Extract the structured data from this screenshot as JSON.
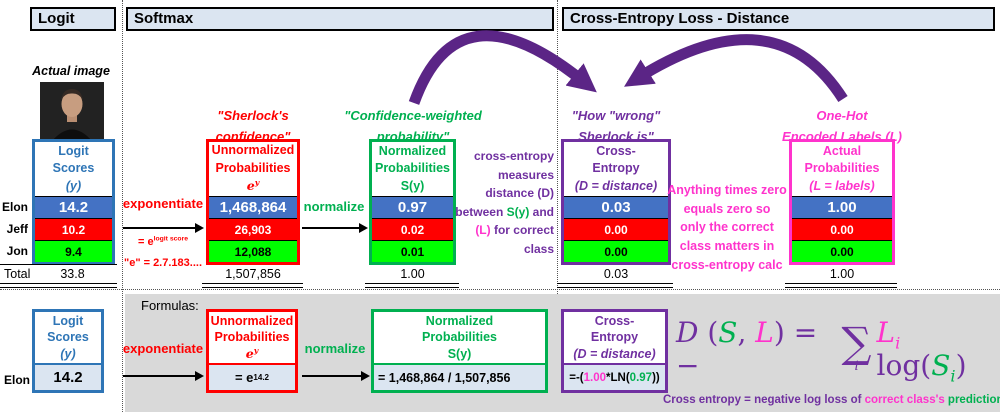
{
  "headers": {
    "logit": "Logit",
    "softmax": "Softmax",
    "cross_entropy": "Cross-Entropy Loss - Distance"
  },
  "photo_label": "Actual image",
  "people": [
    "Elon",
    "Jeff",
    "Jon"
  ],
  "total_label": "Total",
  "top": {
    "logit": {
      "title": [
        "Logit",
        "Scores"
      ],
      "title3": [
        {
          "t": "(y)",
          "i": true
        }
      ],
      "values": [
        "14.2",
        "10.2",
        "9.4"
      ],
      "total": "33.8"
    },
    "exponentiate": {
      "label": "exponentiate",
      "formula": [
        {
          "t": "= e"
        },
        {
          "t": "logit score",
          "sup": true
        }
      ],
      "e_note": "\"e\" = 2.7.183...."
    },
    "unnorm": {
      "label_above": [
        "\"Sherlock's",
        "confidence\""
      ],
      "title": [
        "Unnormalized",
        "Probabilities"
      ],
      "title3": [
        {
          "t": "e",
          "i": true,
          "serif": true
        },
        {
          "t": "y",
          "sup": true,
          "i": true,
          "serif": true
        }
      ],
      "values": [
        "1,468,864",
        "26,903",
        "12,088"
      ],
      "total": "1,507,856"
    },
    "normalize_label": "normalize",
    "norm": {
      "label_above": [
        "\"Confidence-weighted",
        "probability\""
      ],
      "title": [
        "Normalized",
        "Probabilities"
      ],
      "title3": [
        {
          "t": "S(y)"
        }
      ],
      "values": [
        "0.97",
        "0.02",
        "0.01"
      ],
      "total": "1.00"
    },
    "bridge_lines": [
      [
        {
          "t": "cross-entropy"
        }
      ],
      [
        {
          "t": "measures"
        }
      ],
      [
        {
          "t": "distance (D)"
        }
      ],
      [
        {
          "t": "between "
        },
        {
          "t": "S(y)",
          "c": "#00b050"
        },
        {
          "t": " and"
        }
      ],
      [
        {
          "t": "(L)",
          "c": "#ff33cc"
        },
        {
          "t": " for correct"
        }
      ],
      [
        {
          "t": "class"
        }
      ]
    ],
    "ce": {
      "label_above": [
        "\"How \"wrong\"",
        "Sherlock is\""
      ],
      "title": [
        "Cross-",
        "Entropy"
      ],
      "title3": [
        {
          "t": "(D = distance)",
          "i": true
        }
      ],
      "values": [
        "0.03",
        "0.00",
        "0.00"
      ],
      "total": "0.03"
    },
    "zero_note": [
      "Anything times zero",
      "equals zero so",
      "only the correct",
      "class matters in",
      "cross-entropy calc"
    ],
    "actual": {
      "label_above": [
        "One-Hot",
        "Encoded Labels (L)"
      ],
      "title": [
        "Actual",
        "Probabilities"
      ],
      "title3": [
        {
          "t": "(L = labels)",
          "i": true
        }
      ],
      "values": [
        "1.00",
        "0.00",
        "0.00"
      ],
      "total": "1.00"
    }
  },
  "bottom": {
    "formulas_label": "Formulas:",
    "row_label": "Elon",
    "exponentiate_label": "exponentiate",
    "normalize_label": "normalize",
    "logit": {
      "title": [
        "Logit",
        "Scores"
      ],
      "title3": [
        {
          "t": "(y)",
          "i": true
        }
      ],
      "value": "14.2"
    },
    "unnorm": {
      "title": [
        "Unnormalized",
        "Probabilities"
      ],
      "title3": [
        {
          "t": "e",
          "i": true,
          "serif": true
        },
        {
          "t": "y",
          "sup": true,
          "i": true,
          "serif": true
        }
      ],
      "value": [
        {
          "t": "= e"
        },
        {
          "t": "14.2",
          "sup": true
        }
      ]
    },
    "norm": {
      "title": [
        "Normalized",
        "Probabilities"
      ],
      "title3": [
        {
          "t": "S(y)"
        }
      ],
      "value": "= 1,468,864 / 1,507,856"
    },
    "ce": {
      "title": [
        "Cross-",
        "Entropy"
      ],
      "title3": [
        {
          "t": "(D = distance)",
          "i": true
        }
      ],
      "value": [
        {
          "t": "=-("
        },
        {
          "t": "1.00",
          "c": "#ff33cc"
        },
        {
          "t": "*LN("
        },
        {
          "t": "0.97",
          "c": "#00b050"
        },
        {
          "t": "))"
        }
      ]
    },
    "formula": {
      "pre": [
        {
          "t": "D",
          "i": true
        },
        {
          "t": " ("
        },
        {
          "t": "S",
          "c": "#00b050",
          "i": true
        },
        {
          "t": ", "
        },
        {
          "t": "L",
          "c": "#ff33cc",
          "i": true
        },
        {
          "t": ") = − "
        }
      ],
      "sigma": "∑",
      "sigma_sub": "i",
      "post": [
        {
          "t": "L",
          "c": "#ff33cc",
          "i": true
        },
        {
          "t": "i",
          "c": "#ff33cc",
          "i": true,
          "sub": true
        },
        {
          "t": " log("
        },
        {
          "t": "S",
          "c": "#00b050",
          "i": true
        },
        {
          "t": "i",
          "c": "#00b050",
          "i": true,
          "sub": true
        },
        {
          "t": ")"
        }
      ]
    },
    "caption": [
      {
        "t": "Cross entropy = negative log loss of "
      },
      {
        "t": "correct class's",
        "c": "#ff33cc"
      },
      {
        "t": " prediction",
        "c": "#00b050"
      }
    ]
  },
  "colors": {
    "accent_blue": "#2e75b6",
    "row_blue": "#4472c4",
    "row_red": "#ff0000",
    "row_green": "#00ff00",
    "green_text": "#00b050",
    "purple": "#7030a0",
    "pink": "#ff33cc",
    "arrow_purple": "#5b2586",
    "panel_fill": "#dbe5f1",
    "gray_panel": "#d9d9d9"
  }
}
